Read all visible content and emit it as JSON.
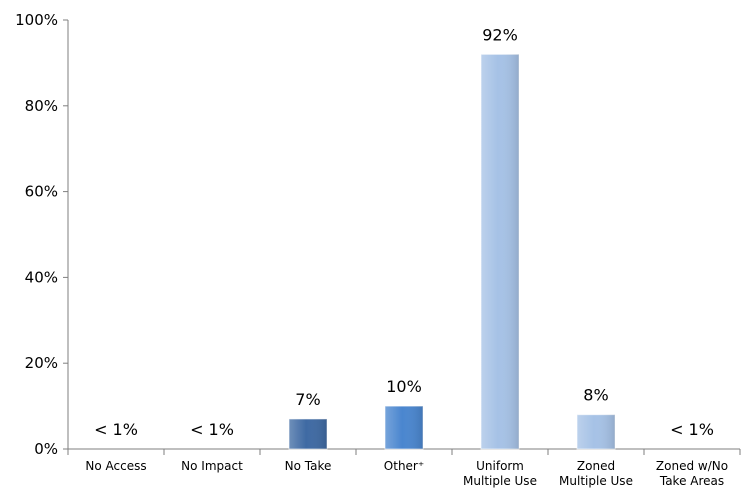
{
  "chart_data": {
    "type": "bar",
    "categories": [
      [
        "No Access"
      ],
      [
        "No Impact"
      ],
      [
        "No Take"
      ],
      [
        "Other⁺"
      ],
      [
        "Uniform",
        "Multiple Use"
      ],
      [
        "Zoned",
        "Multiple Use"
      ],
      [
        "Zoned w/No",
        "Take Areas"
      ]
    ],
    "values": [
      0,
      0,
      7,
      10,
      92,
      8,
      0
    ],
    "data_labels": [
      "< 1%",
      "< 1%",
      "7%",
      "10%",
      "92%",
      "8%",
      "< 1%"
    ],
    "y_ticks": [
      "0%",
      "20%",
      "40%",
      "60%",
      "80%",
      "100%"
    ],
    "ylim": [
      0,
      100
    ],
    "title": "",
    "xlabel": "",
    "ylabel": "",
    "grid": false,
    "legend": "none",
    "bar_colors": [
      "#9dbde6",
      "#9dbde6",
      "#3f6aa3",
      "#4a86cf",
      "#a6c2e6",
      "#a6c2e6",
      "#a6c2e6"
    ]
  }
}
